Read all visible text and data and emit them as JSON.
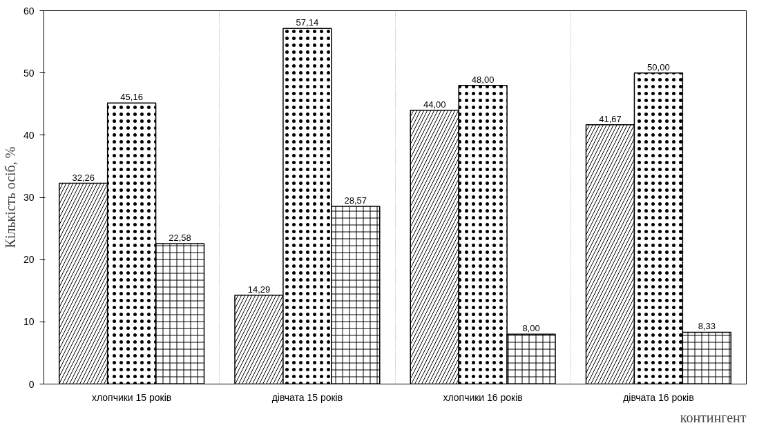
{
  "chart_data": {
    "type": "bar",
    "xlabel": "контингент",
    "ylabel": "Кількість осіб, %",
    "categories": [
      "хлопчики 15 років",
      "дівчата 15 років",
      "хлопчики 16 років",
      "дівчата 16 років"
    ],
    "series": [
      {
        "color": "#000000",
        "values": [
          32.26,
          14.29,
          44.0,
          41.67
        ],
        "value_labels": [
          "32,26",
          "14,29",
          "44,00",
          "41,67"
        ]
      },
      {
        "color": "#000000",
        "values": [
          45.16,
          57.14,
          48.0,
          50.0
        ],
        "value_labels": [
          "45,16",
          "57,14",
          "48,00",
          "50,00"
        ]
      },
      {
        "color": "#000000",
        "values": [
          22.58,
          28.57,
          8.0,
          8.33
        ],
        "value_labels": [
          "22,58",
          "28,57",
          "8,00",
          "8,33"
        ]
      }
    ],
    "ylim": [
      0,
      60
    ],
    "yticks": [
      0,
      10,
      20,
      30,
      40,
      50,
      60
    ],
    "grid": "x"
  }
}
